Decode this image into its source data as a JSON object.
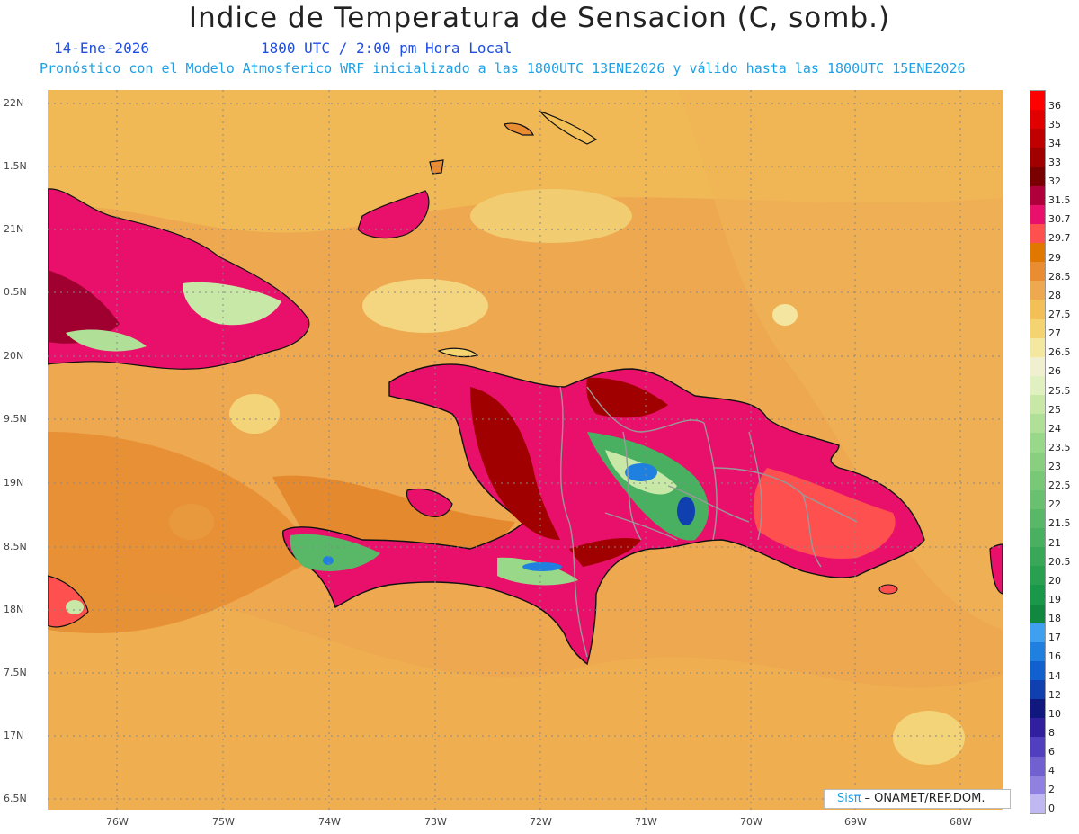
{
  "title": "Indice de Temperatura de Sensacion (C, somb.)",
  "subtitle_date": "14-Ene-2026",
  "subtitle_time": "1800 UTC / 2:00 pm Hora Local",
  "subtitle_info": "Pronóstico con el Modelo Atmosferico WRF inicializado a las 1800UTC_13ENE2026 y válido hasta las  1800UTC_15ENE2026",
  "credit": {
    "brand": "Sis",
    "pi": "π",
    "text": "– ONAMET/REP.DOM."
  },
  "lat_labels": [
    "22N",
    "1.5N",
    "21N",
    "0.5N",
    "20N",
    "9.5N",
    "19N",
    "8.5N",
    "18N",
    "7.5N",
    "17N",
    "6.5N"
  ],
  "lon_labels": [
    "76W",
    "75W",
    "74W",
    "73W",
    "72W",
    "71W",
    "70W",
    "69W",
    "68W"
  ],
  "colorbar": {
    "labels": [
      "36",
      "35",
      "34",
      "33",
      "32",
      "31.5",
      "30.7",
      "29.7",
      "29",
      "28.5",
      "28",
      "27.5",
      "27",
      "26.5",
      "26",
      "25.5",
      "25",
      "24",
      "23.5",
      "23",
      "22.5",
      "22",
      "21.5",
      "21",
      "20.5",
      "20",
      "19",
      "18",
      "17",
      "16",
      "14",
      "12",
      "10",
      "8",
      "6",
      "4",
      "2",
      "0"
    ],
    "colors": [
      "#ff0000",
      "#e00000",
      "#c00000",
      "#a00000",
      "#7a0000",
      "#b0003c",
      "#e8106a",
      "#ff5050",
      "#e07800",
      "#ea8c32",
      "#eea850",
      "#f2c056",
      "#f4d470",
      "#f4e8a0",
      "#f0f0d0",
      "#e0f0c0",
      "#c8e8a8",
      "#b0e098",
      "#98d888",
      "#88d080",
      "#78c878",
      "#68c070",
      "#58b868",
      "#48b060",
      "#38a858",
      "#28a050",
      "#189848",
      "#108840",
      "#40a0f0",
      "#2080e0",
      "#1060d0",
      "#1040b0",
      "#101880",
      "#3020a0",
      "#5040c0",
      "#7060d0",
      "#9080e0",
      "#c0b8f0"
    ]
  }
}
